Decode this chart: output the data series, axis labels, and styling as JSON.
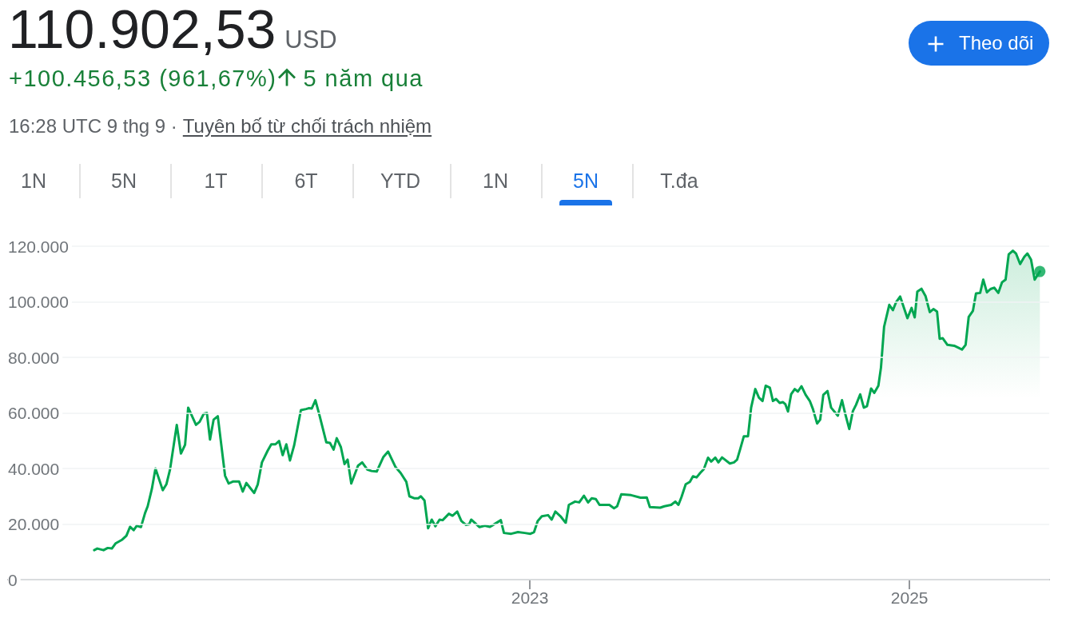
{
  "chart_data": {
    "type": "area",
    "title": "110.902,53",
    "subtitle": "+100.456,53 (961,67%)",
    "annotations": [
      "USD",
      "5 năm qua",
      "16:28 UTC 9 thg 9 ·",
      "Tuyên bố từ chối trách nhiệm",
      "1N",
      "5N",
      "1T",
      "6T",
      "YTD",
      "1N",
      "5N",
      "T.đa",
      "Theo dõi"
    ],
    "series": [
      {
        "color": "#00a651",
        "x": [
          "2020-09-14",
          "2020-09-20",
          "2020-10-02",
          "2020-10-10",
          "2020-10-18",
          "2020-10-25",
          "2020-11-07",
          "2020-11-15",
          "2020-11-22",
          "2020-11-29",
          "2020-12-05",
          "2020-12-13",
          "2020-12-21",
          "2020-12-26",
          "2021-01-03",
          "2021-01-10",
          "2021-01-24",
          "2021-01-31",
          "2021-02-07",
          "2021-02-20",
          "2021-02-28",
          "2021-03-08",
          "2021-03-14",
          "2021-03-29",
          "2021-04-05",
          "2021-04-13",
          "2021-04-19",
          "2021-04-25",
          "2021-05-02",
          "2021-05-10",
          "2021-05-24",
          "2021-05-31",
          "2021-06-08",
          "2021-06-20",
          "2021-06-27",
          "2021-07-04",
          "2021-07-11",
          "2021-07-19",
          "2021-07-26",
          "2021-08-03",
          "2021-08-14",
          "2021-08-21",
          "2021-08-29",
          "2021-09-05",
          "2021-09-12",
          "2021-09-19",
          "2021-09-26",
          "2021-10-04",
          "2021-10-17",
          "2021-10-27",
          "2021-11-01",
          "2021-11-07",
          "2021-11-14",
          "2021-11-22",
          "2021-12-05",
          "2021-12-12",
          "2021-12-19",
          "2021-12-25",
          "2022-01-02",
          "2022-01-09",
          "2022-01-15",
          "2022-01-22",
          "2022-02-04",
          "2022-02-12",
          "2022-02-22",
          "2022-03-02",
          "2022-03-12",
          "2022-03-25",
          "2022-04-03",
          "2022-04-17",
          "2022-04-27",
          "2022-05-08",
          "2022-05-14",
          "2022-05-23",
          "2022-05-31",
          "2022-06-05",
          "2022-06-12",
          "2022-06-19",
          "2022-06-26",
          "2022-07-03",
          "2022-07-11",
          "2022-07-17",
          "2022-07-29",
          "2022-08-05",
          "2022-08-14",
          "2022-08-22",
          "2022-08-31",
          "2022-09-06",
          "2022-09-10",
          "2022-09-26",
          "2022-10-06",
          "2022-10-16",
          "2022-10-24",
          "2022-11-06",
          "2022-11-12",
          "2022-11-26",
          "2022-12-09",
          "2022-12-22",
          "2023-01-02",
          "2023-01-09",
          "2023-01-16",
          "2023-01-24",
          "2023-02-05",
          "2023-02-12",
          "2023-02-19",
          "2023-03-01",
          "2023-03-11",
          "2023-03-17",
          "2023-03-29",
          "2023-04-06",
          "2023-04-15",
          "2023-04-23",
          "2023-04-30",
          "2023-05-08",
          "2023-05-15",
          "2023-05-27",
          "2023-06-03",
          "2023-06-12",
          "2023-06-18",
          "2023-06-26",
          "2023-07-15",
          "2023-08-02",
          "2023-08-14",
          "2023-08-20",
          "2023-09-09",
          "2023-09-17",
          "2023-09-30",
          "2023-10-08",
          "2023-10-14",
          "2023-10-20",
          "2023-10-28",
          "2023-11-05",
          "2023-11-11",
          "2023-11-18",
          "2023-11-25",
          "2023-12-02",
          "2023-12-10",
          "2023-12-16",
          "2023-12-24",
          "2023-12-30",
          "2024-01-06",
          "2024-01-21",
          "2024-01-29",
          "2024-02-04",
          "2024-02-10",
          "2024-02-17",
          "2024-02-25",
          "2024-03-02",
          "2024-03-10",
          "2024-03-17",
          "2024-03-24",
          "2024-03-30",
          "2024-04-07",
          "2024-04-13",
          "2024-04-19",
          "2024-04-26",
          "2024-05-02",
          "2024-05-07",
          "2024-05-12",
          "2024-05-18",
          "2024-05-25",
          "2024-05-31",
          "2024-06-07",
          "2024-06-15",
          "2024-06-23",
          "2024-06-29",
          "2024-07-07",
          "2024-07-13",
          "2024-07-19",
          "2024-07-27",
          "2024-08-03",
          "2024-08-16",
          "2024-08-24",
          "2024-08-30",
          "2024-09-07",
          "2024-09-14",
          "2024-09-20",
          "2024-09-28",
          "2024-10-05",
          "2024-10-11",
          "2024-10-19",
          "2024-10-25",
          "2024-11-02",
          "2024-11-07",
          "2024-11-13",
          "2024-11-23",
          "2024-11-30",
          "2024-12-06",
          "2024-12-14",
          "2024-12-22",
          "2024-12-28",
          "2025-01-05",
          "2025-01-11",
          "2025-01-16",
          "2025-01-24",
          "2025-02-01",
          "2025-02-09",
          "2025-02-16",
          "2025-02-23",
          "2025-02-28",
          "2025-03-06",
          "2025-03-15",
          "2025-03-28",
          "2025-04-05",
          "2025-04-12",
          "2025-04-19",
          "2025-04-25",
          "2025-05-03",
          "2025-05-09",
          "2025-05-17",
          "2025-05-23",
          "2025-05-30",
          "2025-06-06",
          "2025-06-13",
          "2025-06-21",
          "2025-06-28",
          "2025-07-05",
          "2025-07-11",
          "2025-07-19",
          "2025-07-25",
          "2025-08-02",
          "2025-08-10",
          "2025-08-16",
          "2025-08-23",
          "2025-08-30",
          "2025-09-05",
          "2025-09-09"
        ],
        "values": [
          10600,
          11200,
          10600,
          11400,
          11200,
          13000,
          14400,
          15800,
          19000,
          17800,
          19400,
          18900,
          24000,
          26400,
          32600,
          40000,
          32200,
          34300,
          39600,
          55700,
          45400,
          48500,
          61900,
          55700,
          56800,
          59700,
          60000,
          50400,
          57600,
          58800,
          37400,
          34600,
          35300,
          35300,
          31700,
          34800,
          33100,
          31200,
          34300,
          42200,
          46400,
          48700,
          48700,
          49900,
          44800,
          48700,
          42900,
          48300,
          61000,
          61400,
          61700,
          61600,
          64600,
          59000,
          49400,
          49200,
          46800,
          50900,
          47700,
          41600,
          43200,
          34600,
          41000,
          42200,
          39600,
          39100,
          38900,
          44200,
          46100,
          40600,
          38400,
          35200,
          30000,
          29300,
          29300,
          30000,
          28500,
          18500,
          21600,
          19200,
          21600,
          21400,
          23700,
          23000,
          24500,
          21100,
          19700,
          19900,
          21600,
          18900,
          19400,
          19000,
          19900,
          21400,
          16800,
          16500,
          17100,
          16800,
          16500,
          17100,
          21100,
          22800,
          23200,
          21600,
          24500,
          22800,
          20400,
          26900,
          28100,
          27800,
          30200,
          27800,
          29300,
          29000,
          26900,
          26900,
          26900,
          25700,
          26400,
          30700,
          30400,
          29500,
          29600,
          26100,
          25900,
          26400,
          26900,
          28100,
          26900,
          29800,
          34300,
          35200,
          37200,
          36800,
          38400,
          39800,
          43900,
          42500,
          43900,
          42200,
          44000,
          41800,
          42200,
          43200,
          47000,
          51600,
          51600,
          61900,
          68600,
          65500,
          64300,
          69800,
          69100,
          64300,
          65000,
          63600,
          63900,
          63100,
          60500,
          66700,
          68600,
          67700,
          69600,
          66500,
          64300,
          61400,
          56200,
          57600,
          66500,
          67900,
          61900,
          59000,
          64600,
          59800,
          54200,
          60700,
          62900,
          66700,
          61900,
          62400,
          68800,
          67200,
          69800,
          76300,
          91000,
          98900,
          97000,
          99800,
          101900,
          97400,
          94100,
          97800,
          94400,
          103700,
          104700,
          102000,
          96300,
          97400,
          96500,
          86700,
          86900,
          84500,
          84200,
          83500,
          82800,
          84500,
          94600,
          96700,
          103000,
          103200,
          108000,
          103400,
          104600,
          105100,
          103200,
          107000,
          108000,
          117100,
          118400,
          117400,
          113600,
          116200,
          117400,
          115200,
          108000,
          109700,
          110900
        ]
      },
      {
        "type": "scatter",
        "marker": "circle",
        "color": "#00a651",
        "x": [
          "2025-09-09"
        ],
        "values": [
          110900
        ]
      }
    ],
    "xlim": [
      "2020-04-01",
      "2025-09-27"
    ],
    "xticks": [
      "2023",
      "2025"
    ],
    "ylim": [
      0,
      120000
    ],
    "yticks": [
      0,
      {
        "value": 20000,
        "label": "20.000"
      },
      {
        "value": 40000,
        "label": "40.000"
      },
      {
        "value": 60000,
        "label": "60.000"
      },
      {
        "value": 80000,
        "label": "80.000"
      },
      {
        "value": 100000,
        "label": "100.000"
      },
      {
        "value": 120000,
        "label": "120.000"
      }
    ],
    "grid": "y"
  }
}
